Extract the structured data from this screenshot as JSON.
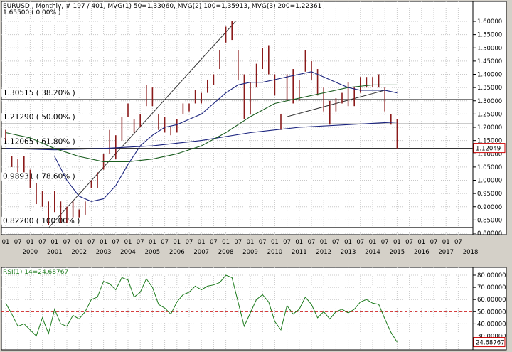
{
  "main_header": "EURUSD , Monthly, # 197 / 401, MVG(1) 50=1.33060, MVG(2) 100=1.35913, MVG(3) 200=1.22361",
  "rsi_header": "RSI(1) 14=24.68767",
  "top_level_label": "1.65500 ( 0.00% )",
  "colors": {
    "price_bars": "#8b1a1a",
    "ma50": "#1a237e",
    "ma100": "#1b5e20",
    "ma200": "#1a237e",
    "rsi_line": "#1b7a1b",
    "rsi_mid": "#cc0000",
    "last_price_box": "#cc0000"
  },
  "chart_data": [
    {
      "type": "line",
      "title": "EURUSD Monthly",
      "ylim": [
        0.8,
        1.62
      ],
      "y_ticks": [
        "1.60000",
        "1.55000",
        "1.50000",
        "1.45000",
        "1.40000",
        "1.35000",
        "1.30000",
        "1.25000",
        "1.20000",
        "1.15000",
        "1.10000",
        "1.05000",
        "1.00000",
        "0.95000",
        "0.90000",
        "0.85000",
        "0.80000"
      ],
      "x_month_labels": [
        "01",
        "07",
        "01",
        "07",
        "01",
        "07",
        "01",
        "07",
        "01",
        "07",
        "01",
        "07",
        "01",
        "07",
        "01",
        "07",
        "01",
        "07",
        "01",
        "07",
        "01",
        "07",
        "01",
        "07",
        "01",
        "07",
        "01",
        "07",
        "01",
        "07",
        "01",
        "07",
        "01",
        "07",
        "01",
        "07",
        "01",
        "07"
      ],
      "x_year_labels": [
        "2000",
        "2001",
        "2002",
        "2003",
        "2004",
        "2005",
        "2006",
        "2007",
        "2008",
        "2009",
        "2010",
        "2011",
        "2012",
        "2013",
        "2014",
        "2015",
        "2016",
        "2017",
        "2018"
      ],
      "last_price": "1.12049",
      "fib_levels": [
        {
          "label": "1.30515  ( 38.20% )",
          "value": 1.30515
        },
        {
          "label": "1.21290  ( 50.00% )",
          "value": 1.2129
        },
        {
          "label": "1.12065  ( 61.80% )",
          "value": 1.12065
        },
        {
          "label": "0.98931  ( 78.60% )",
          "value": 0.98931
        },
        {
          "label": "0.82200  ( 100.00% )",
          "value": 0.822
        }
      ],
      "price_close": [
        [
          1999.0,
          1.16
        ],
        [
          1999.25,
          1.07
        ],
        [
          1999.5,
          1.06
        ],
        [
          1999.75,
          1.06
        ],
        [
          2000.0,
          1.01
        ],
        [
          2000.25,
          0.95
        ],
        [
          2000.5,
          0.93
        ],
        [
          2000.75,
          0.85
        ],
        [
          2001.0,
          0.93
        ],
        [
          2001.25,
          0.89
        ],
        [
          2001.5,
          0.86
        ],
        [
          2001.75,
          0.89
        ],
        [
          2002.0,
          0.87
        ],
        [
          2002.25,
          0.89
        ],
        [
          2002.5,
          0.98
        ],
        [
          2002.75,
          1.02
        ],
        [
          2003.0,
          1.08
        ],
        [
          2003.25,
          1.13
        ],
        [
          2003.5,
          1.16
        ],
        [
          2003.75,
          1.22
        ],
        [
          2004.0,
          1.25
        ],
        [
          2004.25,
          1.2
        ],
        [
          2004.5,
          1.23
        ],
        [
          2004.75,
          1.33
        ],
        [
          2005.0,
          1.3
        ],
        [
          2005.25,
          1.21
        ],
        [
          2005.5,
          1.2
        ],
        [
          2005.75,
          1.18
        ],
        [
          2006.0,
          1.2
        ],
        [
          2006.25,
          1.27
        ],
        [
          2006.5,
          1.28
        ],
        [
          2006.75,
          1.32
        ],
        [
          2007.0,
          1.32
        ],
        [
          2007.25,
          1.36
        ],
        [
          2007.5,
          1.39
        ],
        [
          2007.75,
          1.46
        ],
        [
          2008.0,
          1.55
        ],
        [
          2008.25,
          1.56
        ],
        [
          2008.5,
          1.41
        ],
        [
          2008.75,
          1.27
        ],
        [
          2009.0,
          1.33
        ],
        [
          2009.25,
          1.41
        ],
        [
          2009.5,
          1.46
        ],
        [
          2009.75,
          1.43
        ],
        [
          2010.0,
          1.36
        ],
        [
          2010.25,
          1.22
        ],
        [
          2010.5,
          1.36
        ],
        [
          2010.75,
          1.34
        ],
        [
          2011.0,
          1.37
        ],
        [
          2011.25,
          1.45
        ],
        [
          2011.5,
          1.38
        ],
        [
          2011.75,
          1.3
        ],
        [
          2012.0,
          1.31
        ],
        [
          2012.25,
          1.24
        ],
        [
          2012.5,
          1.29
        ],
        [
          2012.75,
          1.32
        ],
        [
          2013.0,
          1.3
        ],
        [
          2013.25,
          1.31
        ],
        [
          2013.5,
          1.35
        ],
        [
          2013.75,
          1.38
        ],
        [
          2014.0,
          1.38
        ],
        [
          2014.25,
          1.37
        ],
        [
          2014.5,
          1.27
        ],
        [
          2014.75,
          1.21
        ],
        [
          2015.0,
          1.12049
        ]
      ],
      "price_range": [
        [
          1999.0,
          1.19,
          1.15
        ],
        [
          1999.25,
          1.09,
          1.05
        ],
        [
          1999.5,
          1.08,
          1.03
        ],
        [
          1999.75,
          1.09,
          1.03
        ],
        [
          2000.0,
          1.04,
          0.97
        ],
        [
          2000.25,
          0.99,
          0.91
        ],
        [
          2000.5,
          0.96,
          0.9
        ],
        [
          2000.75,
          0.92,
          0.83
        ],
        [
          2001.0,
          0.96,
          0.88
        ],
        [
          2001.25,
          0.92,
          0.84
        ],
        [
          2001.5,
          0.9,
          0.84
        ],
        [
          2001.75,
          0.92,
          0.86
        ],
        [
          2002.0,
          0.89,
          0.86
        ],
        [
          2002.25,
          0.92,
          0.87
        ],
        [
          2002.5,
          1.0,
          0.97
        ],
        [
          2002.75,
          1.03,
          0.97
        ],
        [
          2003.0,
          1.1,
          1.04
        ],
        [
          2003.25,
          1.19,
          1.1
        ],
        [
          2003.5,
          1.17,
          1.08
        ],
        [
          2003.75,
          1.24,
          1.15
        ],
        [
          2004.0,
          1.29,
          1.24
        ],
        [
          2004.25,
          1.23,
          1.18
        ],
        [
          2004.5,
          1.25,
          1.2
        ],
        [
          2004.75,
          1.36,
          1.28
        ],
        [
          2005.0,
          1.35,
          1.28
        ],
        [
          2005.25,
          1.25,
          1.19
        ],
        [
          2005.5,
          1.24,
          1.18
        ],
        [
          2005.75,
          1.2,
          1.17
        ],
        [
          2006.0,
          1.23,
          1.18
        ],
        [
          2006.25,
          1.29,
          1.25
        ],
        [
          2006.5,
          1.29,
          1.26
        ],
        [
          2006.75,
          1.34,
          1.29
        ],
        [
          2007.0,
          1.33,
          1.29
        ],
        [
          2007.25,
          1.38,
          1.33
        ],
        [
          2007.5,
          1.4,
          1.36
        ],
        [
          2007.75,
          1.49,
          1.42
        ],
        [
          2008.0,
          1.58,
          1.52
        ],
        [
          2008.25,
          1.6,
          1.53
        ],
        [
          2008.5,
          1.49,
          1.38
        ],
        [
          2008.75,
          1.4,
          1.23
        ],
        [
          2009.0,
          1.37,
          1.25
        ],
        [
          2009.25,
          1.44,
          1.35
        ],
        [
          2009.5,
          1.5,
          1.42
        ],
        [
          2009.75,
          1.51,
          1.4
        ],
        [
          2010.0,
          1.4,
          1.32
        ],
        [
          2010.25,
          1.25,
          1.19
        ],
        [
          2010.5,
          1.4,
          1.3
        ],
        [
          2010.75,
          1.42,
          1.29
        ],
        [
          2011.0,
          1.38,
          1.3
        ],
        [
          2011.25,
          1.49,
          1.41
        ],
        [
          2011.5,
          1.45,
          1.38
        ],
        [
          2011.75,
          1.42,
          1.32
        ],
        [
          2012.0,
          1.35,
          1.26
        ],
        [
          2012.25,
          1.3,
          1.21
        ],
        [
          2012.5,
          1.31,
          1.26
        ],
        [
          2012.75,
          1.33,
          1.29
        ],
        [
          2013.0,
          1.37,
          1.28
        ],
        [
          2013.25,
          1.35,
          1.28
        ],
        [
          2013.5,
          1.39,
          1.33
        ],
        [
          2013.75,
          1.39,
          1.35
        ],
        [
          2014.0,
          1.39,
          1.35
        ],
        [
          2014.25,
          1.4,
          1.35
        ],
        [
          2014.5,
          1.35,
          1.26
        ],
        [
          2014.75,
          1.25,
          1.21
        ],
        [
          2015.0,
          1.23,
          1.12
        ]
      ],
      "ma50": [
        [
          2001.0,
          1.09
        ],
        [
          2001.5,
          1.0
        ],
        [
          2002.0,
          0.94
        ],
        [
          2002.5,
          0.92
        ],
        [
          2003.0,
          0.93
        ],
        [
          2003.5,
          0.98
        ],
        [
          2004.0,
          1.06
        ],
        [
          2004.5,
          1.13
        ],
        [
          2005.0,
          1.17
        ],
        [
          2005.5,
          1.2
        ],
        [
          2006.0,
          1.21
        ],
        [
          2006.5,
          1.23
        ],
        [
          2007.0,
          1.25
        ],
        [
          2007.5,
          1.29
        ],
        [
          2008.0,
          1.33
        ],
        [
          2008.5,
          1.36
        ],
        [
          2009.0,
          1.37
        ],
        [
          2009.5,
          1.37
        ],
        [
          2010.0,
          1.38
        ],
        [
          2010.5,
          1.39
        ],
        [
          2011.0,
          1.4
        ],
        [
          2011.5,
          1.41
        ],
        [
          2012.0,
          1.39
        ],
        [
          2012.5,
          1.37
        ],
        [
          2013.0,
          1.35
        ],
        [
          2013.5,
          1.34
        ],
        [
          2014.0,
          1.34
        ],
        [
          2014.5,
          1.34
        ],
        [
          2015.0,
          1.33
        ]
      ],
      "ma100": [
        [
          1999.0,
          1.18
        ],
        [
          2000.0,
          1.16
        ],
        [
          2001.0,
          1.12
        ],
        [
          2002.0,
          1.09
        ],
        [
          2003.0,
          1.07
        ],
        [
          2004.0,
          1.07
        ],
        [
          2005.0,
          1.08
        ],
        [
          2006.0,
          1.1
        ],
        [
          2007.0,
          1.13
        ],
        [
          2008.0,
          1.18
        ],
        [
          2009.0,
          1.24
        ],
        [
          2010.0,
          1.29
        ],
        [
          2011.0,
          1.31
        ],
        [
          2012.0,
          1.33
        ],
        [
          2013.0,
          1.35
        ],
        [
          2014.0,
          1.36
        ],
        [
          2015.0,
          1.36
        ]
      ],
      "ma200": [
        [
          1999.0,
          1.12
        ],
        [
          2001.0,
          1.115
        ],
        [
          2003.0,
          1.12
        ],
        [
          2005.0,
          1.13
        ],
        [
          2007.0,
          1.15
        ],
        [
          2009.0,
          1.18
        ],
        [
          2011.0,
          1.2
        ],
        [
          2013.0,
          1.21
        ],
        [
          2015.0,
          1.22
        ]
      ],
      "trendlines": [
        {
          "from": [
            2000.75,
            0.82
          ],
          "to": [
            2008.4,
            1.6
          ]
        },
        {
          "from": [
            2010.5,
            1.24
          ],
          "to": [
            2014.5,
            1.34
          ]
        }
      ]
    },
    {
      "type": "line",
      "title": "RSI(1) 14",
      "ylim": [
        20,
        85
      ],
      "y_ticks": [
        "80.00000",
        "70.00000",
        "60.00000",
        "50.00000",
        "40.00000",
        "30.00000"
      ],
      "midline": 50,
      "last_value": "24.68767",
      "x": [
        1999.0,
        1999.25,
        1999.5,
        1999.75,
        2000.0,
        2000.25,
        2000.5,
        2000.75,
        2001.0,
        2001.25,
        2001.5,
        2001.75,
        2002.0,
        2002.25,
        2002.5,
        2002.75,
        2003.0,
        2003.25,
        2003.5,
        2003.75,
        2004.0,
        2004.25,
        2004.5,
        2004.75,
        2005.0,
        2005.25,
        2005.5,
        2005.75,
        2006.0,
        2006.25,
        2006.5,
        2006.75,
        2007.0,
        2007.25,
        2007.5,
        2007.75,
        2008.0,
        2008.25,
        2008.5,
        2008.75,
        2009.0,
        2009.25,
        2009.5,
        2009.75,
        2010.0,
        2010.25,
        2010.5,
        2010.75,
        2011.0,
        2011.25,
        2011.5,
        2011.75,
        2012.0,
        2012.25,
        2012.5,
        2012.75,
        2013.0,
        2013.25,
        2013.5,
        2013.75,
        2014.0,
        2014.25,
        2014.5,
        2014.75,
        2015.0
      ],
      "values": [
        57,
        48,
        38,
        40,
        35,
        30,
        45,
        32,
        52,
        40,
        38,
        47,
        44,
        50,
        60,
        62,
        75,
        73,
        68,
        78,
        76,
        62,
        66,
        77,
        70,
        56,
        53,
        48,
        58,
        64,
        66,
        71,
        68,
        71,
        72,
        74,
        80,
        78,
        58,
        38,
        49,
        60,
        64,
        58,
        42,
        35,
        55,
        48,
        52,
        62,
        56,
        45,
        50,
        44,
        50,
        52,
        49,
        52,
        58,
        60,
        57,
        56,
        44,
        33,
        25
      ]
    }
  ]
}
